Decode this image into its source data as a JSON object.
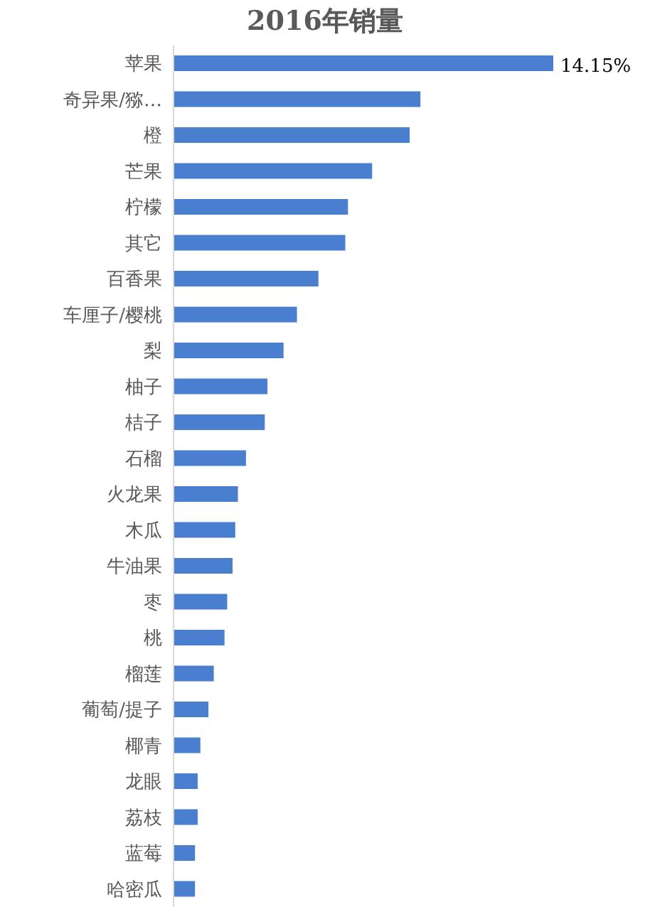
{
  "chart_data": {
    "type": "bar",
    "orientation": "horizontal",
    "title": "2016年销量",
    "categories": [
      "苹果",
      "奇异果/猕…",
      "橙",
      "芒果",
      "柠檬",
      "其它",
      "百香果",
      "车厘子/樱桃",
      "梨",
      "柚子",
      "桔子",
      "石榴",
      "火龙果",
      "木瓜",
      "牛油果",
      "枣",
      "桃",
      "榴莲",
      "葡萄/提子",
      "椰青",
      "龙眼",
      "荔枝",
      "蓝莓",
      "哈密瓜"
    ],
    "values": [
      14.15,
      9.2,
      8.8,
      7.4,
      6.5,
      6.4,
      5.4,
      4.6,
      4.1,
      3.5,
      3.4,
      2.7,
      2.4,
      2.3,
      2.2,
      2.0,
      1.9,
      1.5,
      1.3,
      1.0,
      0.9,
      0.9,
      0.8,
      0.8
    ],
    "value_labels": [
      "14.15%",
      null,
      null,
      null,
      null,
      null,
      null,
      null,
      null,
      null,
      null,
      null,
      null,
      null,
      null,
      null,
      null,
      null,
      null,
      null,
      null,
      null,
      null,
      null
    ],
    "color": "#4a7fcf",
    "grid": false,
    "legend": false
  }
}
